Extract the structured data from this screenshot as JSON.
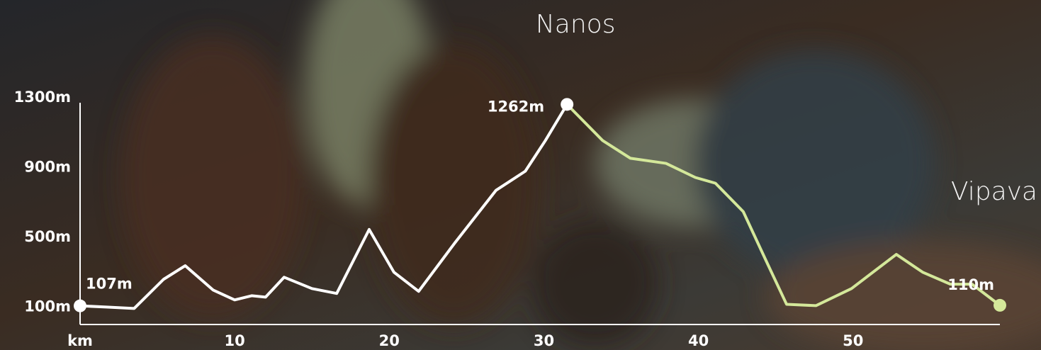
{
  "chart_data": {
    "type": "line",
    "xlim": [
      0,
      59.5
    ],
    "ylim": [
      0,
      1300
    ],
    "xticks": [
      {
        "value": 0,
        "label": "km"
      },
      10,
      20,
      30,
      40,
      50
    ],
    "yticks": [
      {
        "value": 100,
        "label": "100m"
      },
      {
        "value": 500,
        "label": "500m"
      },
      {
        "value": 900,
        "label": "900m"
      },
      {
        "value": 1300,
        "label": "1300m"
      }
    ],
    "annotations": [
      "Nanos",
      "Vipava"
    ],
    "series": [
      {
        "color": "#ffffff",
        "x": [
          0,
          1.7,
          3.5,
          5.4,
          6.8,
          8.6,
          10.0,
          11.1,
          12.0,
          13.2,
          15.0,
          16.6,
          18.7,
          20.3,
          21.9,
          24.2,
          26.9,
          28.8,
          30.1,
          31.5
        ],
        "values": [
          107,
          100,
          92,
          259,
          337,
          198,
          141,
          165,
          157,
          271,
          206,
          178,
          545,
          300,
          190,
          463,
          769,
          879,
          1055,
          1262
        ],
        "value_labels": [
          "107m",
          null,
          null,
          null,
          null,
          null,
          null,
          null,
          null,
          null,
          null,
          null,
          null,
          null,
          null,
          null,
          null,
          null,
          null,
          "1262m"
        ]
      },
      {
        "color": "#d4e89a",
        "x": [
          31.5,
          33.8,
          35.6,
          37.9,
          39.8,
          41.1,
          42.9,
          44.4,
          45.7,
          47.6,
          49.9,
          52.8,
          54.5,
          56.3,
          57.7,
          59.5
        ],
        "values": [
          1262,
          1055,
          953,
          924,
          843,
          810,
          647,
          361,
          116,
          108,
          206,
          402,
          300,
          231,
          231,
          110
        ],
        "value_labels": [
          null,
          null,
          null,
          null,
          null,
          null,
          null,
          null,
          null,
          null,
          null,
          null,
          null,
          null,
          null,
          "110m"
        ]
      }
    ]
  }
}
